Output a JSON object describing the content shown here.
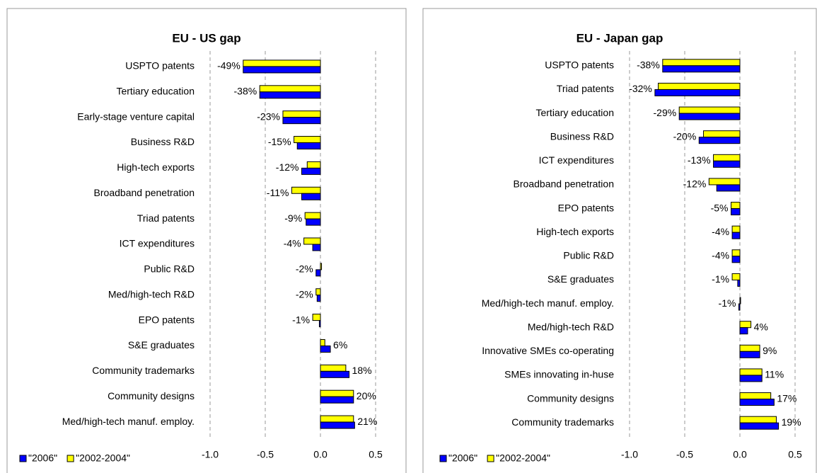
{
  "chart_data": [
    {
      "type": "bar",
      "orientation": "horizontal",
      "title": "EU - US gap",
      "categories": [
        "USPTO patents",
        "Tertiary education",
        "Early-stage venture capital",
        "Business R&D",
        "High-tech exports",
        "Broadband penetration",
        "Triad patents",
        "ICT expenditures",
        "Public R&D",
        "Med/high-tech R&D",
        "EPO patents",
        "S&E graduates",
        "Community trademarks",
        "Community designs",
        "Med/high-tech manuf. employ."
      ],
      "series": [
        {
          "name": "\"2006\"",
          "color": "#0000ff",
          "values": [
            -0.7,
            -0.55,
            -0.34,
            -0.21,
            -0.17,
            -0.17,
            -0.13,
            -0.07,
            -0.04,
            -0.03,
            -0.01,
            0.09,
            0.26,
            0.3,
            0.31
          ]
        },
        {
          "name": "\"2002-2004\"",
          "color": "#ffff00",
          "values": [
            -0.7,
            -0.55,
            -0.34,
            -0.24,
            -0.12,
            -0.26,
            -0.14,
            -0.15,
            0.01,
            -0.04,
            -0.07,
            0.04,
            0.23,
            0.3,
            0.3
          ]
        }
      ],
      "gap_labels": [
        "-49%",
        "-38%",
        "-23%",
        "-15%",
        "-12%",
        "-11%",
        "-9%",
        "-4%",
        "-2%",
        "-2%",
        "-1%",
        "6%",
        "18%",
        "20%",
        "21%"
      ],
      "xlim": [
        -1,
        0.5
      ],
      "xticks": [
        {
          "value": -1,
          "label": "-1.0"
        },
        -0.5,
        {
          "value": 0,
          "label": "0.0"
        },
        0.5
      ],
      "grid": true,
      "legend": "bottom"
    },
    {
      "type": "bar",
      "orientation": "horizontal",
      "title": "EU - Japan gap",
      "categories": [
        "USPTO patents",
        "Triad patents",
        "Tertiary education",
        "Business R&D",
        "ICT expenditures",
        "Broadband penetration",
        "EPO patents",
        "High-tech exports",
        "Public R&D",
        "S&E graduates",
        "Med/high-tech manuf. employ.",
        "Med/high-tech R&D",
        "Innovative SMEs co-operating",
        "SMEs innovating in-huse",
        "Community designs",
        "Community trademarks"
      ],
      "series": [
        {
          "name": "\"2006\"",
          "color": "#0000ff",
          "values": [
            -0.7,
            -0.77,
            -0.55,
            -0.37,
            -0.24,
            -0.21,
            -0.08,
            -0.07,
            -0.07,
            -0.02,
            -0.01,
            0.07,
            0.18,
            0.2,
            0.31,
            0.35
          ]
        },
        {
          "name": "\"2002-2004\"",
          "color": "#ffff00",
          "values": [
            -0.7,
            -0.74,
            -0.55,
            -0.33,
            -0.24,
            -0.28,
            -0.08,
            -0.07,
            -0.07,
            -0.07,
            0,
            0.1,
            0.18,
            0.2,
            0.28,
            0.33
          ]
        }
      ],
      "gap_labels": [
        "-38%",
        "-32%",
        "-29%",
        "-20%",
        "-13%",
        "-12%",
        "-5%",
        "-4%",
        "-4%",
        "-1%",
        "-1%",
        "4%",
        "9%",
        "11%",
        "17%",
        "19%"
      ],
      "xlim": [
        -1,
        0.5
      ],
      "xticks": [
        {
          "value": -1,
          "label": "-1.0"
        },
        -0.5,
        {
          "value": 0,
          "label": "0.0"
        },
        0.5
      ],
      "grid": true,
      "legend": "bottom"
    }
  ]
}
